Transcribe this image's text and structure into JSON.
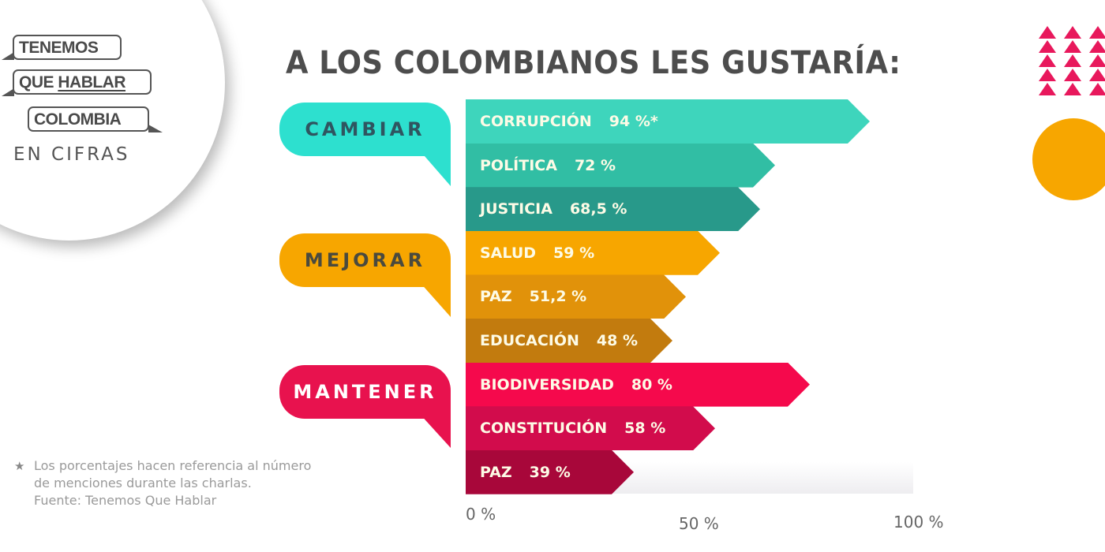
{
  "logo": {
    "line1": "TENEMOS",
    "line2a": "QUE",
    "line2b": "HABLAR",
    "line3": "COLOMBIA",
    "subtitle": "EN CIFRAS"
  },
  "title": "A LOS COLOMBIANOS LES GUSTARÍA:",
  "categories": [
    {
      "label": "CAMBIAR",
      "color": "#2de0cf",
      "text_color": "#2f5560"
    },
    {
      "label": "MEJORAR",
      "color": "#f7a600",
      "text_color": "#4a4a3e"
    },
    {
      "label": "MANTENER",
      "color": "#e8124e",
      "text_color": "#ffffff"
    }
  ],
  "bars": [
    {
      "label": "CORRUPCIÓN",
      "value_text": "94 %*",
      "value": 94,
      "color": "#3ed5bc",
      "group": "CAMBIAR"
    },
    {
      "label": "POLÍTICA",
      "value_text": "72 %",
      "value": 72,
      "color": "#31bea4",
      "group": "CAMBIAR"
    },
    {
      "label": "JUSTICIA",
      "value_text": "68,5 %",
      "value": 68.5,
      "color": "#28998a",
      "group": "CAMBIAR"
    },
    {
      "label": "SALUD",
      "value_text": "59 %",
      "value": 59,
      "color": "#f7a600",
      "group": "MEJORAR"
    },
    {
      "label": "PAZ",
      "value_text": "51,2 %",
      "value": 51.2,
      "color": "#e1920a",
      "group": "MEJORAR"
    },
    {
      "label": "EDUCACIÓN",
      "value_text": "48 %",
      "value": 48,
      "color": "#c27b0e",
      "group": "MEJORAR"
    },
    {
      "label": "BIODIVERSIDAD",
      "value_text": "80 %",
      "value": 80,
      "color": "#f5094c",
      "group": "MANTENER"
    },
    {
      "label": "CONSTITUCIÓN",
      "value_text": "58 %",
      "value": 58,
      "color": "#d20c4c",
      "group": "MANTENER"
    },
    {
      "label": "PAZ",
      "value_text": "39 %",
      "value": 39,
      "color": "#a8073a",
      "group": "MANTENER"
    }
  ],
  "axis": {
    "ticks": [
      "0 %",
      "50 %",
      "100 %"
    ]
  },
  "footnote": {
    "star": "★",
    "line1": "Los porcentajes hacen referencia al número",
    "line2": "de menciones durante las charlas.",
    "line3": "Fuente: Tenemos Que Hablar"
  },
  "chart_data": {
    "type": "bar",
    "orientation": "horizontal",
    "title": "A LOS COLOMBIANOS LES GUSTARÍA:",
    "categories": [
      "CORRUPCIÓN",
      "POLÍTICA",
      "JUSTICIA",
      "SALUD",
      "PAZ",
      "EDUCACIÓN",
      "BIODIVERSIDAD",
      "CONSTITUCIÓN",
      "PAZ"
    ],
    "groups": [
      {
        "name": "CAMBIAR",
        "categories": [
          "CORRUPCIÓN",
          "POLÍTICA",
          "JUSTICIA"
        ],
        "values": [
          94,
          72,
          68.5
        ]
      },
      {
        "name": "MEJORAR",
        "categories": [
          "SALUD",
          "PAZ",
          "EDUCACIÓN"
        ],
        "values": [
          59,
          51.2,
          48
        ]
      },
      {
        "name": "MANTENER",
        "categories": [
          "BIODIVERSIDAD",
          "CONSTITUCIÓN",
          "PAZ"
        ],
        "values": [
          80,
          58,
          39
        ]
      }
    ],
    "values": [
      94,
      72,
      68.5,
      59,
      51.2,
      48,
      80,
      58,
      39
    ],
    "xlabel": "",
    "ylabel": "",
    "xlim": [
      0,
      100
    ],
    "xticks": [
      "0 %",
      "50 %",
      "100 %"
    ],
    "grid": false,
    "annotations": [
      "* Los porcentajes hacen referencia al número de menciones durante las charlas.",
      "Fuente: Tenemos Que Hablar"
    ]
  }
}
